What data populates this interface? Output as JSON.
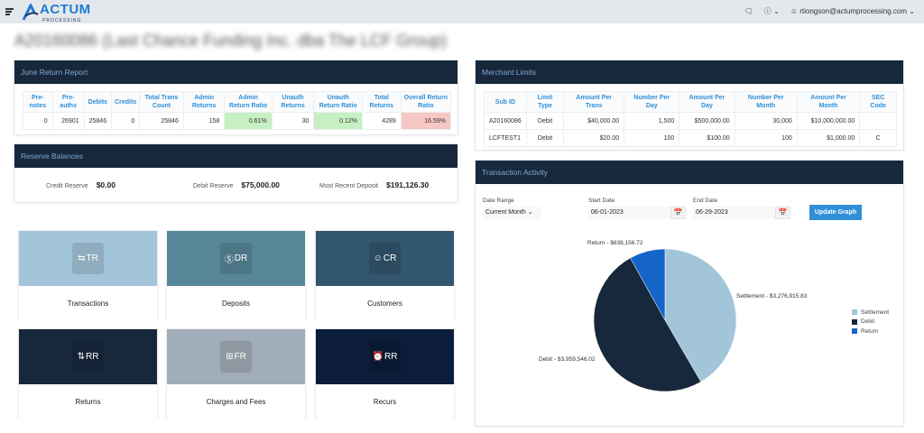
{
  "header": {
    "logo_text": "ACTUM",
    "logo_sub": "PROCESSING",
    "user": "rtiongson@actumprocessing.com",
    "icons": [
      "menu-icon",
      "chat-icon",
      "help-icon",
      "user-icon"
    ]
  },
  "page_title": "A20160086 (Last Chance Funding Inc. dba The LCF Group)",
  "return_report": {
    "title": "June Return Report",
    "headers": [
      "Pre-notes",
      "Pre-auths",
      "Debits",
      "Credits",
      "Total Trans Count",
      "Admin Returns",
      "Admin Return Ratio",
      "Unauth Returns",
      "Unauth Return Ratio",
      "Total Returns",
      "Overall Return Ratio"
    ],
    "row": [
      "0",
      "26901",
      "25846",
      "0",
      "25846",
      "158",
      "0.61%",
      "30",
      "0.12%",
      "4289",
      "16.59%"
    ]
  },
  "reserve": {
    "title": "Reserve Balances",
    "credit_label": "Credit Reserve",
    "credit": "$0.00",
    "debit_label": "Debit Reserve",
    "debit": "$75,000.00",
    "deposit_label": "Most Recent Deposit",
    "deposit": "$191,126.30"
  },
  "tiles": [
    {
      "abbr": "TR",
      "label": "Transactions",
      "color": "#a3c5d9",
      "icon": "arrows-swap-icon"
    },
    {
      "abbr": "DR",
      "label": "Deposits",
      "color": "#578699",
      "icon": "dollar-circle-icon"
    },
    {
      "abbr": "CR",
      "label": "Customers",
      "color": "#33566f",
      "icon": "users-icon"
    },
    {
      "abbr": "RR",
      "label": "Returns",
      "color": "#17283d",
      "icon": "return-arrows-icon"
    },
    {
      "abbr": "FR",
      "label": "Charges and Fees",
      "color": "#a1adb8",
      "icon": "plus-square-icon"
    },
    {
      "abbr": "RR",
      "label": "Recurs",
      "color": "#0b1d3a",
      "icon": "alarm-clock-icon"
    }
  ],
  "merchant_limits": {
    "title": "Merchant Limits",
    "headers": [
      "Sub ID",
      "Limit Type",
      "Amount Per Trans",
      "Number Per Day",
      "Amount Per Day",
      "Number Per Month",
      "Amount Per Month",
      "SEC Code"
    ],
    "rows": [
      [
        "A20160086",
        "Debit",
        "$40,000.00",
        "1,500",
        "$500,000.00",
        "30,000",
        "$10,000,000.00",
        ""
      ],
      [
        "LCFTEST1",
        "Debit",
        "$20.00",
        "100",
        "$100.00",
        "100",
        "$1,000.00",
        "C"
      ]
    ]
  },
  "activity": {
    "title": "Transaction Activity",
    "date_range_label": "Date Range",
    "date_range": "Current Month",
    "start_label": "Start Date",
    "start": "06-01-2023",
    "end_label": "End Date",
    "end": "06-29-2023",
    "button": "Update Graph"
  },
  "chart_data": {
    "type": "pie",
    "categories": [
      "Settlement",
      "Debit",
      "Return"
    ],
    "values": [
      3276915.83,
      3959546.02,
      638156.72
    ],
    "labels": [
      "Settlement - $3,276,915.83",
      "Debit - $3,959,546.02",
      "Return - $638,156.72"
    ],
    "colors": [
      "#a3c5d9",
      "#17283d",
      "#1565c8"
    ],
    "legend": "right"
  }
}
